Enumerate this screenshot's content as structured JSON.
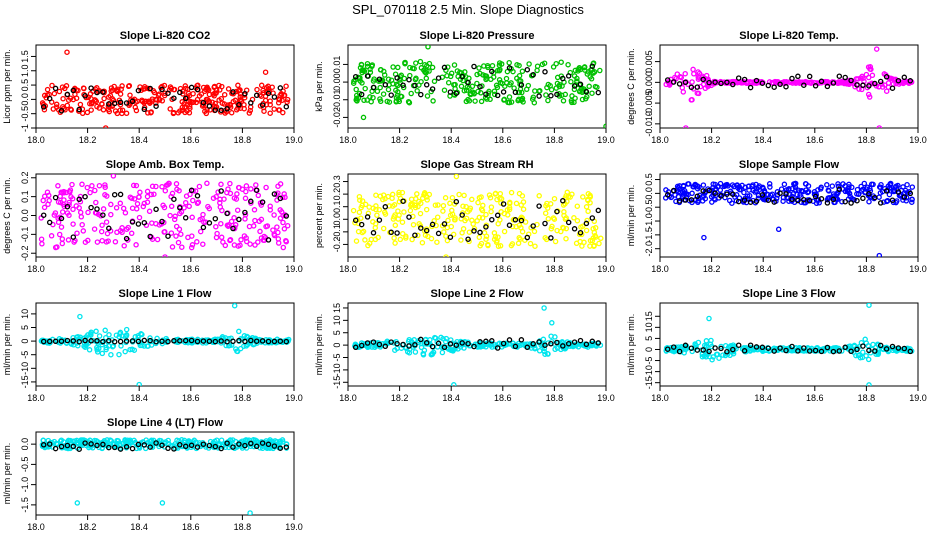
{
  "figure": {
    "title": "SPL_070118  2.5 Min. Slope Diagnostics"
  },
  "chart_data": [
    {
      "type": "scatter",
      "title": "Slope Li-820 CO2",
      "xlabel": "",
      "ylabel": "Licor ppm per min.",
      "xlim": [
        18.0,
        19.0
      ],
      "ylim": [
        -1.0,
        1.9
      ],
      "xticks": [
        "18.0",
        "18.2",
        "18.4",
        "18.6",
        "18.8",
        "19.0"
      ],
      "yticks": [
        {
          "v": -1.0,
          "t": "-1"
        },
        {
          "v": -0.5,
          "t": "-0.5"
        },
        {
          "v": 0.0,
          "t": "0.0"
        },
        {
          "v": 0.5,
          "t": "0.5"
        },
        {
          "v": 1.0,
          "t": "1.0"
        },
        {
          "v": 1.5,
          "t": "1.5"
        }
      ],
      "color": "#ff0000",
      "n": 320,
      "spread": 0.55,
      "profile": "uniform",
      "blackSpread": 0.45,
      "blackCenter": 0.0,
      "center": 0.0,
      "outliers": [
        [
          18.12,
          1.65
        ],
        [
          18.27,
          -1.0
        ],
        [
          18.89,
          0.95
        ]
      ]
    },
    {
      "type": "scatter",
      "title": "Slope Li-820 Pressure",
      "xlabel": "",
      "ylabel": "kPa per min.",
      "xlim": [
        18.0,
        19.0
      ],
      "ylim": [
        -0.026,
        0.021
      ],
      "xticks": [
        "18.0",
        "18.2",
        "18.4",
        "18.6",
        "18.8",
        "19.0"
      ],
      "yticks": [
        {
          "v": -0.02,
          "t": "-0.02"
        },
        {
          "v": -0.01,
          "t": "-0.01"
        },
        {
          "v": 0.0,
          "t": "0.00"
        },
        {
          "v": 0.01,
          "t": "0.01"
        }
      ],
      "color": "#00c000",
      "n": 320,
      "spread": 0.013,
      "profile": "uniform",
      "blackSpread": 0.009,
      "blackCenter": 0.0,
      "center": 0.0,
      "outliers": [
        [
          18.31,
          0.02
        ],
        [
          18.06,
          -0.02
        ],
        [
          19.0,
          -0.025
        ]
      ]
    },
    {
      "type": "scatter",
      "title": "Slope Li-820 Temp.",
      "xlabel": "",
      "ylabel": "degrees C per min.",
      "xlim": [
        18.0,
        19.0
      ],
      "ylim": [
        -0.011,
        0.009
      ],
      "xticks": [
        "18.0",
        "18.2",
        "18.4",
        "18.6",
        "18.8",
        "19.0"
      ],
      "yticks": [
        {
          "v": -0.01,
          "t": "-0.010"
        },
        {
          "v": -0.005,
          "t": "-0.005"
        },
        {
          "v": 0.0,
          "t": "0.000"
        },
        {
          "v": 0.005,
          "t": "0.005"
        }
      ],
      "color": "#ff00ff",
      "n": 260,
      "spread": 0.0045,
      "profile": "temp",
      "blackSpread": 0.0015,
      "blackCenter": 0.0,
      "center": 0.0,
      "outliers": [
        [
          18.1,
          -0.011
        ],
        [
          18.84,
          0.008
        ],
        [
          18.85,
          -0.011
        ]
      ]
    },
    {
      "type": "scatter",
      "title": "Slope Amb. Box Temp.",
      "xlabel": "",
      "ylabel": "degrees C per min.",
      "xlim": [
        18.0,
        19.0
      ],
      "ylim": [
        -0.22,
        0.22
      ],
      "xticks": [
        "18.0",
        "18.2",
        "18.4",
        "18.6",
        "18.8",
        "19.0"
      ],
      "yticks": [
        {
          "v": -0.2,
          "t": "-0.2"
        },
        {
          "v": -0.1,
          "t": "-0.1"
        },
        {
          "v": 0.0,
          "t": "0.0"
        },
        {
          "v": 0.1,
          "t": "0.1"
        },
        {
          "v": 0.2,
          "t": "0.2"
        }
      ],
      "color": "#ff00ff",
      "n": 300,
      "spread": 0.19,
      "profile": "uniform",
      "blackSpread": 0.14,
      "blackCenter": 0.0,
      "center": 0.0,
      "outliers": [
        [
          18.3,
          0.21
        ],
        [
          18.5,
          -0.22
        ]
      ]
    },
    {
      "type": "scatter",
      "title": "Slope Gas Stream RH",
      "xlabel": "",
      "ylabel": "percent per min.",
      "xlim": [
        18.0,
        19.0
      ],
      "ylim": [
        -0.3,
        0.36
      ],
      "xticks": [
        "18.0",
        "18.2",
        "18.4",
        "18.6",
        "18.8",
        "19.0"
      ],
      "yticks": [
        {
          "v": -0.2,
          "t": "-0.2"
        },
        {
          "v": -0.1,
          "t": "-0.1"
        },
        {
          "v": 0.0,
          "t": "0.0"
        },
        {
          "v": 0.1,
          "t": "0.1"
        },
        {
          "v": 0.2,
          "t": "0.2"
        },
        {
          "v": 0.3,
          "t": "0.3"
        }
      ],
      "color": "#ffff00",
      "n": 300,
      "spread": 0.24,
      "profile": "uniform",
      "blackSpread": 0.16,
      "blackCenter": 0.0,
      "center": 0.0,
      "outliers": [
        [
          18.42,
          0.34
        ],
        [
          18.38,
          -0.3
        ]
      ]
    },
    {
      "type": "scatter",
      "title": "Slope Sample Flow",
      "xlabel": "",
      "ylabel": "ml/min per min.",
      "xlim": [
        18.0,
        19.0
      ],
      "ylim": [
        -2.3,
        0.7
      ],
      "xticks": [
        "18.0",
        "18.2",
        "18.4",
        "18.6",
        "18.8",
        "19.0"
      ],
      "yticks": [
        {
          "v": -2.0,
          "t": "-2.0"
        },
        {
          "v": -1.5,
          "t": "-1.5"
        },
        {
          "v": -1.0,
          "t": "-1.0"
        },
        {
          "v": -0.5,
          "t": "-0.5"
        },
        {
          "v": 0.0,
          "t": "0.0"
        },
        {
          "v": 0.5,
          "t": "0.5"
        }
      ],
      "color": "#0000ff",
      "n": 320,
      "spread": 0.4,
      "profile": "uniform",
      "blackSpread": 0.25,
      "blackCenter": -0.1,
      "center": 0.0,
      "outliers": [
        [
          18.17,
          -1.6
        ],
        [
          18.85,
          -2.25
        ],
        [
          18.46,
          -1.3
        ]
      ]
    },
    {
      "type": "scatter",
      "title": "Slope Line 1 Flow",
      "xlabel": "",
      "ylabel": "ml/min per min.",
      "xlim": [
        18.0,
        19.0
      ],
      "ylim": [
        -16.5,
        14.0
      ],
      "xticks": [
        "18.0",
        "18.2",
        "18.4",
        "18.6",
        "18.8",
        "19.0"
      ],
      "yticks": [
        {
          "v": -15,
          "t": "-15"
        },
        {
          "v": -10,
          "t": "-10"
        },
        {
          "v": -5,
          "t": "-5"
        },
        {
          "v": 0,
          "t": "0"
        },
        {
          "v": 5,
          "t": "5"
        },
        {
          "v": 10,
          "t": "10"
        }
      ],
      "color": "#00e5ee",
      "n": 260,
      "spread": 1.5,
      "profile": "flow1",
      "blackSpread": 0.25,
      "blackCenter": 0.0,
      "center": 0.0,
      "outliers": [
        [
          18.77,
          13.0
        ],
        [
          18.4,
          -16.0
        ],
        [
          18.17,
          9.0
        ]
      ]
    },
    {
      "type": "scatter",
      "title": "Slope Line 2 Flow",
      "xlabel": "",
      "ylabel": "ml/min per min.",
      "xlim": [
        18.0,
        19.0
      ],
      "ylim": [
        -16.5,
        17.0
      ],
      "xticks": [
        "18.0",
        "18.2",
        "18.4",
        "18.6",
        "18.8",
        "19.0"
      ],
      "yticks": [
        {
          "v": -15,
          "t": "-15"
        },
        {
          "v": -10,
          "t": "-10"
        },
        {
          "v": -5,
          "t": "-5"
        },
        {
          "v": 0,
          "t": "0"
        },
        {
          "v": 5,
          "t": "5"
        },
        {
          "v": 10,
          "t": "10"
        },
        {
          "v": 15,
          "t": "15"
        }
      ],
      "color": "#00e5ee",
      "n": 260,
      "spread": 1.5,
      "profile": "flow2",
      "blackSpread": 1.8,
      "blackCenter": 0.5,
      "center": 0.0,
      "outliers": [
        [
          18.76,
          15.0
        ],
        [
          18.41,
          -16.0
        ],
        [
          18.79,
          9.0
        ]
      ]
    },
    {
      "type": "scatter",
      "title": "Slope Line 3 Flow",
      "xlabel": "",
      "ylabel": "ml/min per min.",
      "xlim": [
        18.0,
        19.0
      ],
      "ylim": [
        -16.5,
        21.0
      ],
      "xticks": [
        "18.0",
        "18.2",
        "18.4",
        "18.6",
        "18.8",
        "19.0"
      ],
      "yticks": [
        {
          "v": -15,
          "t": "-15"
        },
        {
          "v": -10,
          "t": "-10"
        },
        {
          "v": -5,
          "t": "-5"
        },
        {
          "v": 0,
          "t": "0"
        },
        {
          "v": 5,
          "t": "5"
        },
        {
          "v": 10,
          "t": "10"
        },
        {
          "v": 15,
          "t": "15"
        }
      ],
      "color": "#00e5ee",
      "n": 260,
      "spread": 1.5,
      "profile": "flow3",
      "blackSpread": 1.5,
      "blackCenter": 0.5,
      "center": 0.0,
      "outliers": [
        [
          18.81,
          20.0
        ],
        [
          18.81,
          -16.0
        ],
        [
          18.19,
          14.0
        ]
      ]
    },
    {
      "type": "scatter",
      "title": "Slope Line 4 (LT) Flow",
      "xlabel": "",
      "ylabel": "ml/min per min.",
      "xlim": [
        18.0,
        19.0
      ],
      "ylim": [
        -1.75,
        0.3
      ],
      "xticks": [
        "18.0",
        "18.2",
        "18.4",
        "18.6",
        "18.8",
        "19.0"
      ],
      "yticks": [
        {
          "v": -1.5,
          "t": "-1.5"
        },
        {
          "v": -1.0,
          "t": "-1.0"
        },
        {
          "v": -0.5,
          "t": "-0.5"
        },
        {
          "v": 0.0,
          "t": "0.0"
        }
      ],
      "color": "#00e5ee",
      "n": 300,
      "spread": 0.12,
      "profile": "uniform",
      "blackSpread": 0.08,
      "blackCenter": -0.05,
      "center": 0.0,
      "outliers": [
        [
          18.16,
          -1.45
        ],
        [
          18.49,
          -1.45
        ],
        [
          18.83,
          -1.7
        ]
      ]
    }
  ]
}
